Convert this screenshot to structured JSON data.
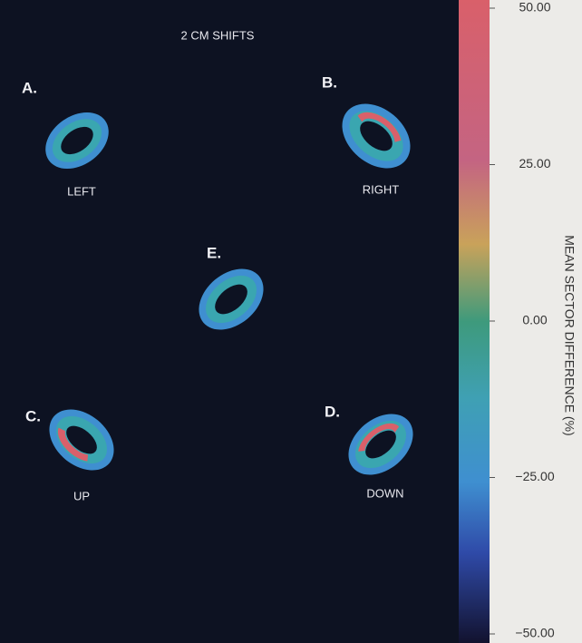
{
  "figure": {
    "title": "2 CM SHIFTS",
    "panels": [
      {
        "letter": "A.",
        "label": "LEFT"
      },
      {
        "letter": "B.",
        "label": "RIGHT"
      },
      {
        "letter": "E.",
        "label": null
      },
      {
        "letter": "C.",
        "label": "UP"
      },
      {
        "letter": "D.",
        "label": "DOWN"
      }
    ],
    "colorbar": {
      "label": "MEAN SECTOR DIFFERENCE (%)",
      "lim": [
        -50,
        50
      ],
      "ticks": [
        {
          "value": 50,
          "label": "50.00"
        },
        {
          "value": 25,
          "label": "25.00"
        },
        {
          "value": 0,
          "label": "0.00"
        },
        {
          "value": -25,
          "label": "−25.00"
        },
        {
          "value": -50,
          "label": "−50.00"
        }
      ]
    }
  }
}
